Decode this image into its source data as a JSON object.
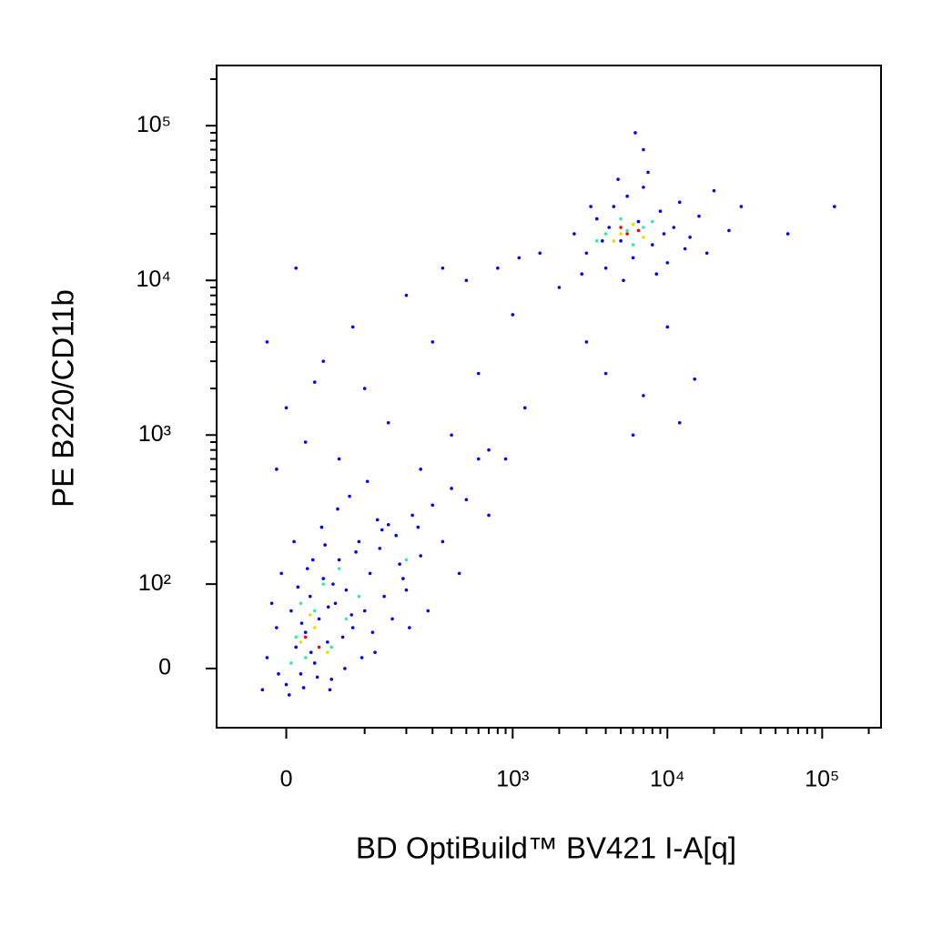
{
  "chart_data": {
    "type": "scatter",
    "xlabel": "BD OptiBuild™ BV421 I-A[q]",
    "ylabel": "PE B220/CD11b",
    "xscale": "biexponential",
    "yscale": "biexponential",
    "xlim": [
      -85,
      240000
    ],
    "ylim": [
      -62,
      245000
    ],
    "xticks": [
      0,
      {
        "value": 1000,
        "label": "10³"
      },
      {
        "value": 10000,
        "label": "10⁴"
      },
      {
        "value": 100000,
        "label": "10⁵"
      }
    ],
    "yticks": [
      0,
      {
        "value": 100,
        "label": "10²"
      },
      {
        "value": 1000,
        "label": "10³"
      },
      {
        "value": 10000,
        "label": "10⁴"
      },
      {
        "value": 100000,
        "label": "10⁵"
      }
    ],
    "xminorticks": [
      100,
      200,
      300,
      400,
      500,
      600,
      700,
      800,
      900,
      2000,
      3000,
      4000,
      5000,
      6000,
      7000,
      8000,
      9000,
      20000,
      30000,
      40000,
      50000,
      60000,
      70000,
      80000,
      90000,
      200000
    ],
    "yminorticks": [
      200,
      300,
      400,
      500,
      600,
      700,
      800,
      900,
      2000,
      3000,
      4000,
      5000,
      6000,
      7000,
      8000,
      9000,
      20000,
      30000,
      40000,
      50000,
      60000,
      70000,
      80000,
      90000,
      200000
    ],
    "series": [
      {
        "color": "#0000ff",
        "x": [
          -20,
          -10,
          0,
          5,
          10,
          15,
          20,
          25,
          30,
          35,
          40,
          45,
          50,
          55,
          60,
          65,
          70,
          80,
          90,
          100,
          110,
          120,
          130,
          140,
          150,
          160,
          180,
          200,
          220,
          250,
          280,
          -25,
          -5,
          8,
          18,
          28,
          38,
          48,
          58,
          75,
          95,
          105,
          125,
          170,
          210,
          240,
          300,
          350,
          400,
          450,
          500,
          600,
          700,
          -15,
          12,
          22,
          33,
          42,
          68,
          85,
          3,
          -8,
          16,
          26,
          46,
          52,
          78,
          115,
          135,
          190,
          -10,
          0,
          20,
          40,
          60,
          80,
          100,
          150,
          200,
          300,
          400,
          500,
          600,
          800,
          1000,
          1200,
          1500,
          2000,
          -20,
          10,
          30,
          250,
          700,
          900,
          350,
          1100,
          2500,
          3000,
          3500,
          4000,
          4500,
          5000,
          5500,
          6000,
          6500,
          7000,
          8000,
          9000,
          10000,
          11000,
          12000,
          14000,
          16000,
          18000,
          20000,
          25000,
          30000,
          2800,
          3200,
          3800,
          4200,
          4800,
          5200,
          7500,
          8500,
          9500,
          13000,
          6200,
          7000,
          60000,
          120000,
          4000,
          6000,
          12000,
          15000,
          7000,
          10000,
          3000
        ],
        "y": [
          10,
          40,
          -15,
          60,
          20,
          -5,
          35,
          80,
          5,
          50,
          110,
          25,
          -10,
          70,
          150,
          30,
          90,
          40,
          200,
          60,
          120,
          15,
          180,
          80,
          260,
          50,
          140,
          90,
          300,
          160,
          60,
          -20,
          120,
          200,
          -18,
          150,
          250,
          -20,
          330,
          400,
          10,
          500,
          280,
          220,
          40,
          250,
          350,
          200,
          450,
          120,
          380,
          700,
          300,
          70,
          95,
          130,
          -8,
          190,
          0,
          170,
          -25,
          -5,
          45,
          15,
          65,
          100,
          55,
          35,
          240,
          110,
          600,
          1500,
          900,
          3000,
          700,
          5000,
          2000,
          1200,
          8000,
          4000,
          1000,
          10000,
          2500,
          12000,
          6000,
          1500,
          15000,
          9000,
          4000,
          12000,
          2200,
          600,
          800,
          700,
          12000,
          14000,
          20000,
          15000,
          25000,
          12000,
          30000,
          18000,
          35000,
          14000,
          24000,
          40000,
          17000,
          28000,
          13000,
          22000,
          32000,
          19000,
          26000,
          15000,
          38000,
          21000,
          30000,
          11000,
          30000,
          18000,
          22000,
          45000,
          10000,
          50000,
          11000,
          20000,
          16000,
          90000,
          70000,
          20000,
          30000,
          2500,
          1000,
          1200,
          2300,
          1800,
          5000,
          4000
        ]
      },
      {
        "color": "#30f0a0",
        "x": [
          10,
          30,
          50,
          20,
          70,
          40,
          5,
          90,
          60,
          15,
          4000,
          5000,
          6000,
          7000,
          3500,
          8000,
          5500,
          200
        ],
        "y": [
          30,
          60,
          20,
          10,
          50,
          100,
          5,
          80,
          130,
          70,
          20000,
          25000,
          17000,
          22000,
          18000,
          24000,
          21000,
          150
        ]
      },
      {
        "color": "#e8e000",
        "x": [
          15,
          30,
          45,
          25,
          5000,
          6000,
          4500,
          7000
        ],
        "y": [
          25,
          40,
          15,
          55,
          20000,
          23000,
          18000,
          19000
        ]
      },
      {
        "color": "#ff0000",
        "x": [
          20,
          35,
          5500,
          6500,
          5000
        ],
        "y": [
          30,
          20,
          20000,
          21000,
          22000
        ]
      }
    ]
  }
}
